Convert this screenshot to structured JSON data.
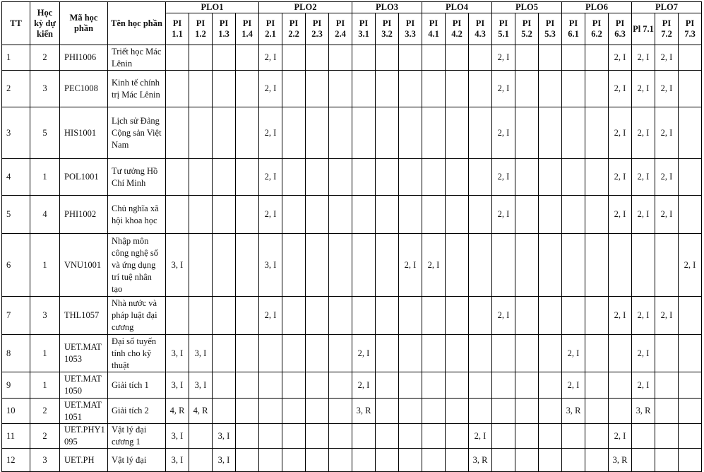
{
  "headers": {
    "tt": "TT",
    "semester": "Học kỳ dự kiến",
    "code": "Mã học phần",
    "name": "Tên học phần",
    "plos": [
      {
        "label": "PLO1",
        "pis": [
          "PI 1.1",
          "PI 1.2",
          "PI 1.3",
          "PI 1.4"
        ]
      },
      {
        "label": "PLO2",
        "pis": [
          "PI 2.1",
          "PI 2.2",
          "PI 2.3",
          "PI 2.4"
        ]
      },
      {
        "label": "PLO3",
        "pis": [
          "PI 3.1",
          "PI 3.2",
          "PI 3.3"
        ]
      },
      {
        "label": "PLO4",
        "pis": [
          "PI 4.1",
          "PI 4.2",
          "PI 4.3"
        ]
      },
      {
        "label": "PLO5",
        "pis": [
          "PI 5.1",
          "PI 5.2",
          "PI 5.3"
        ]
      },
      {
        "label": "PLO6",
        "pis": [
          "PI 6.1",
          "PI 6.2",
          "PI 6.3"
        ]
      },
      {
        "label": "PLO7",
        "pis": [
          "Pl 7.1",
          "PI 7.2",
          "PI 7.3"
        ]
      }
    ]
  },
  "rows": [
    {
      "tt": "1",
      "semester": "2",
      "code": "PHI1006",
      "name": "Triết học Mác Lênin",
      "cells": [
        "",
        "",
        "",
        "",
        "2, I",
        "",
        "",
        "",
        "",
        "",
        "",
        "",
        "",
        "",
        "2, I",
        "",
        "",
        "",
        "",
        "2, I",
        "2, I",
        "2, I",
        ""
      ]
    },
    {
      "tt": "2",
      "semester": "3",
      "code": "PEC1008",
      "name": "Kinh tế chính trị Mác Lênin",
      "cells": [
        "",
        "",
        "",
        "",
        "2, I",
        "",
        "",
        "",
        "",
        "",
        "",
        "",
        "",
        "",
        "2, I",
        "",
        "",
        "",
        "",
        "2, I",
        "2, I",
        "2, I",
        ""
      ]
    },
    {
      "tt": "3",
      "semester": "5",
      "code": "HIS1001",
      "name": "Lịch sử Đảng Cộng sản Việt Nam",
      "cells": [
        "",
        "",
        "",
        "",
        "2, I",
        "",
        "",
        "",
        "",
        "",
        "",
        "",
        "",
        "",
        "2, I",
        "",
        "",
        "",
        "",
        "2, I",
        "2, I",
        "2, I",
        ""
      ]
    },
    {
      "tt": "4",
      "semester": "1",
      "code": "POL1001",
      "name": "Tư tưởng Hồ Chí Minh",
      "cells": [
        "",
        "",
        "",
        "",
        "2, I",
        "",
        "",
        "",
        "",
        "",
        "",
        "",
        "",
        "",
        "2, I",
        "",
        "",
        "",
        "",
        "2, I",
        "2, I",
        "2, I",
        ""
      ]
    },
    {
      "tt": "5",
      "semester": "4",
      "code": "PHI1002",
      "name": "Chủ nghĩa xã hội khoa học",
      "cells": [
        "",
        "",
        "",
        "",
        "2, I",
        "",
        "",
        "",
        "",
        "",
        "",
        "",
        "",
        "",
        "2, I",
        "",
        "",
        "",
        "",
        "2, I",
        "2, I",
        "2, I",
        ""
      ]
    },
    {
      "tt": "6",
      "semester": "1",
      "code": "VNU1001",
      "name": "Nhập môn công nghệ số và ứng dụng trí tuệ nhân tạo",
      "cells": [
        "3, I",
        "",
        "",
        "",
        "3, I",
        "",
        "",
        "",
        "",
        "",
        "2, I",
        "2, I",
        "",
        "",
        "",
        "",
        "",
        "",
        "",
        "",
        "",
        "",
        "2, I"
      ]
    },
    {
      "tt": "7",
      "semester": "3",
      "code": "THL1057",
      "name": "Nhà nước và pháp luật đại cương",
      "cells": [
        "",
        "",
        "",
        "",
        "2, I",
        "",
        "",
        "",
        "",
        "",
        "",
        "",
        "",
        "",
        "2, I",
        "",
        "",
        "",
        "",
        "2, I",
        "2, I",
        "2, I",
        ""
      ]
    },
    {
      "tt": "8",
      "semester": "1",
      "code": "UET.MAT1053",
      "name": "Đại số tuyến tính cho kỹ thuật",
      "cells": [
        "3, I",
        "3, I",
        "",
        "",
        "",
        "",
        "",
        "",
        "2, I",
        "",
        "",
        "",
        "",
        "",
        "",
        "",
        "",
        "2, I",
        "",
        "",
        "2, I",
        "",
        ""
      ]
    },
    {
      "tt": "9",
      "semester": "1",
      "code": "UET.MAT1050",
      "name": "Giải tích 1",
      "cells": [
        "3, I",
        "3, I",
        "",
        "",
        "",
        "",
        "",
        "",
        "2, I",
        "",
        "",
        "",
        "",
        "",
        "",
        "",
        "",
        "2, I",
        "",
        "",
        "2, I",
        "",
        ""
      ]
    },
    {
      "tt": "10",
      "semester": "2",
      "code": "UET.MAT1051",
      "name": "Giải tích 2",
      "cells": [
        "4, R",
        "4, R",
        "",
        "",
        "",
        "",
        "",
        "",
        "3, R",
        "",
        "",
        "",
        "",
        "",
        "",
        "",
        "",
        "3, R",
        "",
        "",
        "3, R",
        "",
        ""
      ]
    },
    {
      "tt": "11",
      "semester": "2",
      "code": "UET.PHY1095",
      "name": "Vật lý đại cương 1",
      "cells": [
        "3, I",
        "",
        "3, I",
        "",
        "",
        "",
        "",
        "",
        "",
        "",
        "",
        "",
        "",
        "2, I",
        "",
        "",
        "",
        "",
        "",
        "2, I",
        "",
        "",
        ""
      ]
    },
    {
      "tt": "12",
      "semester": "3",
      "code": "UET.PH",
      "name": "Vật lý đại",
      "cells": [
        "3, I",
        "",
        "3, I",
        "",
        "",
        "",
        "",
        "",
        "",
        "",
        "",
        "",
        "",
        "3, R",
        "",
        "",
        "",
        "",
        "",
        "3, R",
        "",
        "",
        ""
      ]
    }
  ]
}
